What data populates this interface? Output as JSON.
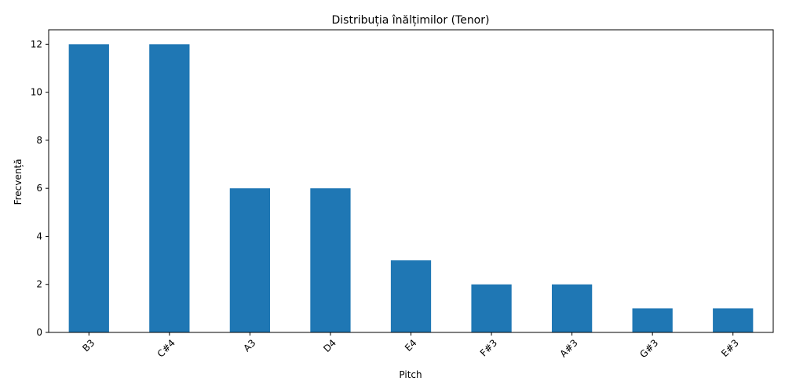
{
  "chart_data": {
    "type": "bar",
    "title": "Distribuția înălțimilor (Tenor)",
    "xlabel": "Pitch",
    "ylabel": "Frecvență",
    "categories": [
      "B3",
      "C#4",
      "A3",
      "D4",
      "E4",
      "F#3",
      "A#3",
      "G#3",
      "E#3"
    ],
    "values": [
      12,
      12,
      6,
      6,
      3,
      2,
      2,
      1,
      1
    ],
    "ylim": [
      0,
      12.6
    ],
    "yticks": [
      0,
      2,
      4,
      6,
      8,
      10,
      12
    ],
    "grid": false,
    "bar_color": "#1f77b4"
  }
}
